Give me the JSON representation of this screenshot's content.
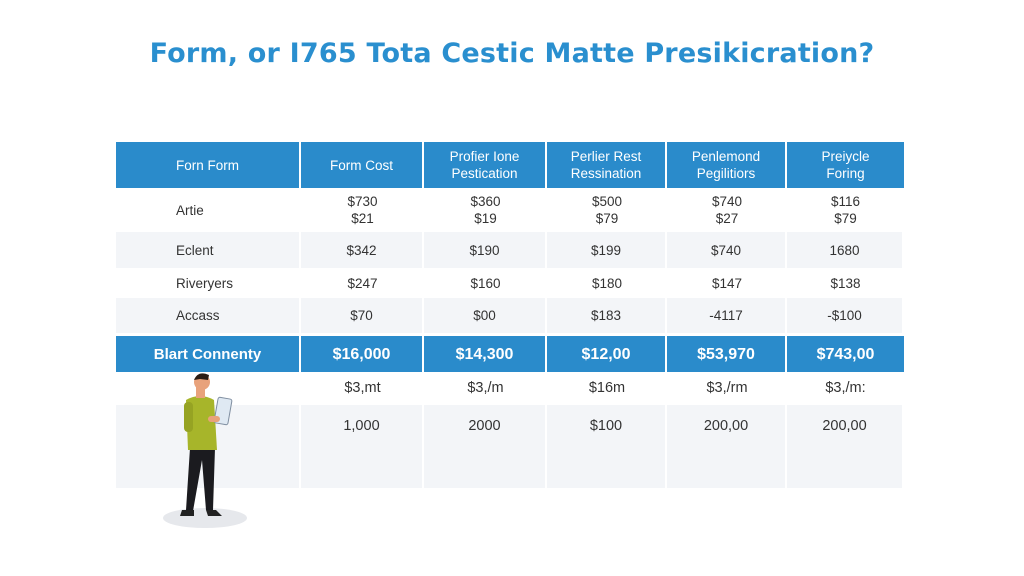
{
  "title": "Form, or I765 Tota Cestic Matte Presikicration?",
  "table": {
    "headers": [
      "Forn Form",
      "Form Cost",
      "Profier Ione\nPestication",
      "Perlier Rest\nRessination",
      "Penlemond\nPegilitiors",
      "Preiycle\nForing"
    ],
    "rows": [
      [
        "Artie",
        "$730\n$21",
        "$360\n$19",
        "$500\n$79",
        "$740\n$27",
        "$116\n$79"
      ],
      [
        "Eclent",
        "$342",
        "$190",
        "$199",
        "$740",
        "1680"
      ],
      [
        "Riveryers",
        "$247",
        "$160",
        "$180",
        "$147",
        "$138"
      ],
      [
        "Accass",
        "$70",
        "$00",
        "$183",
        "-4117",
        "-$100"
      ]
    ],
    "total": [
      "Blart Connenty",
      "$16,000",
      "$14,300",
      "$12,00",
      "$53,970",
      "$743,00"
    ],
    "sub_rows": [
      [
        "",
        "$3,mt",
        "$3,/m",
        "$16m",
        "$3,/rm",
        "$3,/m:"
      ],
      [
        "",
        "1,000",
        "2000",
        "$100",
        "200,00",
        "200,00"
      ],
      [
        "",
        "",
        "",
        "",
        "",
        ""
      ]
    ]
  },
  "colors": {
    "accent": "#2a8bcb",
    "title": "#2a8fcf",
    "row_alt": "#f3f5f8"
  },
  "illustration": "person-holding-clipboard"
}
